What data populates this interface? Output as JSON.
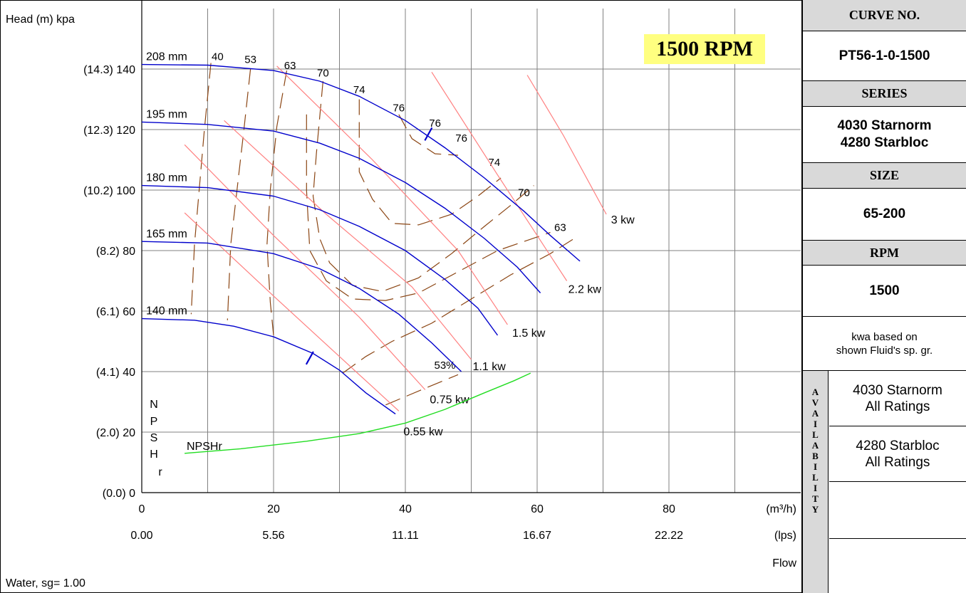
{
  "chart_data": {
    "type": "line",
    "title": "",
    "ylabel": "Head (m)  kpa",
    "xlabel": "Flow",
    "x_units_primary": "(m³/h)",
    "x_units_secondary": "(lps)",
    "xlim": [
      0,
      100
    ],
    "ylim": [
      0,
      160
    ],
    "x_ticks": [
      0,
      20,
      40,
      60,
      80
    ],
    "x_tick_labels": [
      "0",
      "20",
      "40",
      "60",
      "80"
    ],
    "x_secondary_tick_labels": [
      "0.00",
      "5.56",
      "11.11",
      "16.67",
      "22.22"
    ],
    "y_ticks": [
      0,
      20,
      40,
      60,
      80,
      100,
      120,
      140
    ],
    "y_tick_labels": [
      "(0.0) 0",
      "(2.0) 20",
      "(4.1) 40",
      "(6.1) 60",
      "(8.2) 80",
      "(10.2) 100",
      "(12.3) 120",
      "(14.3) 140"
    ],
    "grid": true,
    "rpm_label": "1500 RPM",
    "fluid_note": "Water, sg= 1.00",
    "npsh_axis_label": [
      "N",
      "P",
      "S",
      "H",
      "r"
    ],
    "impeller_curves": [
      {
        "name": "208 mm",
        "color": "#0000cc",
        "points": [
          [
            0,
            141.5
          ],
          [
            10,
            141.3
          ],
          [
            20,
            139.5
          ],
          [
            27,
            136
          ],
          [
            33,
            131
          ],
          [
            40,
            123
          ],
          [
            46,
            114
          ],
          [
            52,
            104
          ],
          [
            58,
            93
          ],
          [
            62,
            85
          ],
          [
            66.5,
            76.5
          ]
        ]
      },
      {
        "name": "195 mm",
        "color": "#0000cc",
        "points": [
          [
            0,
            122.5
          ],
          [
            10,
            121.7
          ],
          [
            20,
            119.5
          ],
          [
            27,
            115.5
          ],
          [
            33,
            110.5
          ],
          [
            40,
            102.5
          ],
          [
            46,
            94
          ],
          [
            52,
            84
          ],
          [
            57,
            74.5
          ],
          [
            60.5,
            66
          ]
        ]
      },
      {
        "name": "180 mm",
        "color": "#0000cc",
        "points": [
          [
            0,
            101.5
          ],
          [
            10,
            100.8
          ],
          [
            20,
            98
          ],
          [
            27,
            93.5
          ],
          [
            33,
            88
          ],
          [
            40,
            80
          ],
          [
            46,
            70.5
          ],
          [
            51,
            61
          ],
          [
            54,
            52
          ]
        ]
      },
      {
        "name": "165 mm",
        "color": "#0000cc",
        "points": [
          [
            0,
            83
          ],
          [
            10,
            82.5
          ],
          [
            20,
            79
          ],
          [
            27,
            74
          ],
          [
            33,
            67.5
          ],
          [
            39,
            59
          ],
          [
            44,
            49.5
          ],
          [
            48.5,
            40
          ]
        ]
      },
      {
        "name": "140 mm",
        "color": "#0000cc",
        "points": [
          [
            0,
            57.5
          ],
          [
            8,
            57
          ],
          [
            14,
            55
          ],
          [
            20,
            51.5
          ],
          [
            26,
            46
          ],
          [
            30,
            40.5
          ],
          [
            34,
            33
          ],
          [
            38.5,
            26
          ]
        ]
      }
    ],
    "power_lines": [
      {
        "name": "3 kw",
        "color": "#ff8080",
        "points": [
          [
            58.5,
            138
          ],
          [
            64,
            118
          ],
          [
            70.5,
            92
          ]
        ]
      },
      {
        "name": "2.2 kw",
        "color": "#ff8080",
        "points": [
          [
            44,
            139
          ],
          [
            54,
            105
          ],
          [
            64.5,
            70
          ]
        ]
      },
      {
        "name": "1.5 kw",
        "color": "#ff8080",
        "points": [
          [
            20.5,
            141
          ],
          [
            35,
            110
          ],
          [
            48,
            80
          ],
          [
            55.5,
            55.5
          ]
        ]
      },
      {
        "name": "1.1 kw",
        "color": "#ff8080",
        "points": [
          [
            12.5,
            123
          ],
          [
            28,
            92
          ],
          [
            41,
            68
          ],
          [
            50,
            44
          ]
        ]
      },
      {
        "name": "0.75 kw",
        "color": "#ff8080",
        "points": [
          [
            6.5,
            115
          ],
          [
            20,
            85
          ],
          [
            33,
            58
          ],
          [
            43,
            34
          ]
        ]
      },
      {
        "name": "0.55 kw",
        "color": "#ff8080",
        "points": [
          [
            6.5,
            92.5
          ],
          [
            20,
            65
          ],
          [
            30,
            45
          ],
          [
            39,
            27
          ]
        ]
      }
    ],
    "efficiency_contours": [
      {
        "name": "40",
        "points": [
          [
            10.5,
            142
          ],
          [
            9.5,
            120
          ],
          [
            8,
            82
          ],
          [
            7.5,
            59
          ]
        ]
      },
      {
        "name": "53",
        "points": [
          [
            16.5,
            140
          ],
          [
            15.5,
            120
          ],
          [
            13.5,
            82
          ],
          [
            13,
            57
          ]
        ]
      },
      {
        "name": "63",
        "points": [
          [
            22,
            139.5
          ],
          [
            20.5,
            121
          ],
          [
            19.5,
            100
          ],
          [
            19,
            82
          ],
          [
            19.5,
            63
          ],
          [
            20,
            52
          ]
        ]
      },
      {
        "name": "63",
        "points": [
          [
            25,
            125
          ],
          [
            25,
            100
          ],
          [
            25.5,
            80
          ],
          [
            28,
            70
          ],
          [
            32,
            64
          ],
          [
            37,
            63.5
          ],
          [
            42,
            66
          ],
          [
            48,
            73
          ],
          [
            54,
            80
          ],
          [
            62,
            86
          ]
        ]
      },
      {
        "name": "70",
        "points": [
          [
            27.5,
            136
          ],
          [
            26.5,
            112
          ],
          [
            26,
            98
          ],
          [
            27,
            84
          ],
          [
            28.5,
            76
          ],
          [
            32,
            68.5
          ],
          [
            36.5,
            66.5
          ],
          [
            42,
            71
          ],
          [
            47,
            79
          ],
          [
            52,
            88
          ],
          [
            56,
            95
          ],
          [
            59.5,
            101.5
          ]
        ]
      },
      {
        "name": "74",
        "points": [
          [
            33,
            130
          ],
          [
            33,
            106
          ],
          [
            35,
            97
          ],
          [
            38,
            89
          ],
          [
            42,
            88.5
          ],
          [
            47,
            92
          ],
          [
            51,
            98
          ],
          [
            54.5,
            104
          ]
        ]
      },
      {
        "name": "76",
        "points": [
          [
            39,
            125
          ],
          [
            41,
            117
          ],
          [
            44.5,
            112
          ],
          [
            48,
            111.5
          ]
        ]
      },
      {
        "name": "53%",
        "points": [
          [
            30.5,
            39.5
          ],
          [
            34,
            45
          ],
          [
            38,
            50
          ],
          [
            44,
            56
          ],
          [
            50,
            64
          ],
          [
            56,
            72
          ],
          [
            62,
            79
          ],
          [
            66,
            84.5
          ]
        ]
      },
      {
        "name": "",
        "points": [
          [
            37,
            29
          ],
          [
            43,
            34.5
          ],
          [
            48,
            39
          ]
        ]
      }
    ],
    "efficiency_labels": [
      {
        "text": "40",
        "x": 11.5,
        "y": 143
      },
      {
        "text": "53",
        "x": 16.5,
        "y": 142
      },
      {
        "text": "63",
        "x": 22.5,
        "y": 140
      },
      {
        "text": "70",
        "x": 27.5,
        "y": 137.5
      },
      {
        "text": "74",
        "x": 33,
        "y": 132
      },
      {
        "text": "76",
        "x": 39,
        "y": 126
      },
      {
        "text": "76",
        "x": 44.5,
        "y": 121
      },
      {
        "text": "76",
        "x": 48.5,
        "y": 116
      },
      {
        "text": "74",
        "x": 53.5,
        "y": 108
      },
      {
        "text": "70",
        "x": 58,
        "y": 98
      },
      {
        "text": "63",
        "x": 63.5,
        "y": 86.5
      },
      {
        "text": "53%",
        "x": 46,
        "y": 41
      }
    ],
    "bep_markers": [
      {
        "x": 43.5,
        "y": 118.5
      },
      {
        "x": 25.5,
        "y": 44.5
      }
    ],
    "npshr_curve": {
      "name": "NPSHr",
      "color": "#22dd22",
      "points": [
        [
          6.5,
          13
        ],
        [
          15,
          14.5
        ],
        [
          25,
          17
        ],
        [
          33,
          19.5
        ],
        [
          40,
          23
        ],
        [
          46,
          27.5
        ],
        [
          52,
          33
        ],
        [
          56.5,
          37
        ],
        [
          59,
          39.5
        ]
      ]
    }
  },
  "sidebar": {
    "curve_no_header": "CURVE NO.",
    "curve_no": "PT56-1-0-1500",
    "series_header": "SERIES",
    "series_line1": "4030 Starnorm",
    "series_line2": "4280 Starbloc",
    "size_header": "SIZE",
    "size": "65-200",
    "rpm_header": "RPM",
    "rpm": "1500",
    "kwa_note_line1": "kwa based on",
    "kwa_note_line2": "shown Fluid's sp. gr.",
    "availability_letters": [
      "A",
      "V",
      "A",
      "I",
      "L",
      "A",
      "B",
      "I",
      "L",
      "I",
      "T",
      "Y"
    ],
    "availability_rows": [
      {
        "line1": "4030 Starnorm",
        "line2": "All Ratings"
      },
      {
        "line1": "4280 Starbloc",
        "line2": "All Ratings"
      },
      {
        "line1": "",
        "line2": ""
      },
      {
        "line1": "",
        "line2": ""
      }
    ]
  },
  "colors": {
    "impeller": "#0000cc",
    "power": "#ff8080",
    "efficiency": "#8b4513",
    "npshr": "#22dd22",
    "grid": "#808080",
    "header_bg": "#d9d9d9",
    "badge_bg": "#ffff80"
  }
}
